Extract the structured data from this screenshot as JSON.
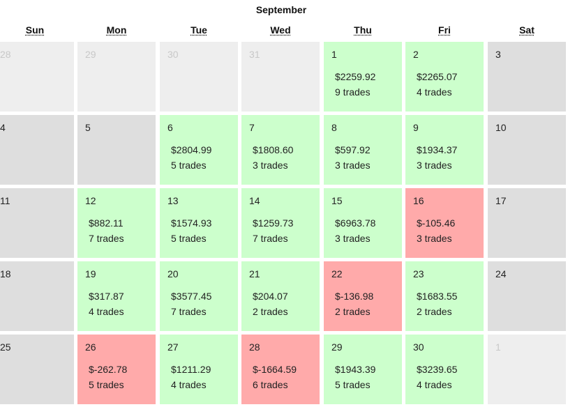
{
  "calendar": {
    "month": "September",
    "weekdays": [
      "Sun",
      "Mon",
      "Tue",
      "Wed",
      "Thu",
      "Fri",
      "Sat"
    ],
    "colors": {
      "profit": "#ccffcc",
      "loss": "#ffaaaa",
      "no_trades": "#dedede",
      "outside_month": "#eeeeee"
    },
    "weeks": [
      [
        {
          "day": "28",
          "status": "outside"
        },
        {
          "day": "29",
          "status": "outside"
        },
        {
          "day": "30",
          "status": "outside"
        },
        {
          "day": "31",
          "status": "outside"
        },
        {
          "day": "1",
          "status": "profit",
          "pnl": "$2259.92",
          "trades": "9 trades"
        },
        {
          "day": "2",
          "status": "profit",
          "pnl": "$2265.07",
          "trades": "4 trades"
        },
        {
          "day": "3",
          "status": "empty"
        }
      ],
      [
        {
          "day": "4",
          "status": "empty"
        },
        {
          "day": "5",
          "status": "empty"
        },
        {
          "day": "6",
          "status": "profit",
          "pnl": "$2804.99",
          "trades": "5 trades"
        },
        {
          "day": "7",
          "status": "profit",
          "pnl": "$1808.60",
          "trades": "3 trades"
        },
        {
          "day": "8",
          "status": "profit",
          "pnl": "$597.92",
          "trades": "3 trades"
        },
        {
          "day": "9",
          "status": "profit",
          "pnl": "$1934.37",
          "trades": "3 trades"
        },
        {
          "day": "10",
          "status": "empty"
        }
      ],
      [
        {
          "day": "11",
          "status": "empty"
        },
        {
          "day": "12",
          "status": "profit",
          "pnl": "$882.11",
          "trades": "7 trades"
        },
        {
          "day": "13",
          "status": "profit",
          "pnl": "$1574.93",
          "trades": "5 trades"
        },
        {
          "day": "14",
          "status": "profit",
          "pnl": "$1259.73",
          "trades": "7 trades"
        },
        {
          "day": "15",
          "status": "profit",
          "pnl": "$6963.78",
          "trades": "3 trades"
        },
        {
          "day": "16",
          "status": "loss",
          "pnl": "$-105.46",
          "trades": "3 trades"
        },
        {
          "day": "17",
          "status": "empty"
        }
      ],
      [
        {
          "day": "18",
          "status": "empty"
        },
        {
          "day": "19",
          "status": "profit",
          "pnl": "$317.87",
          "trades": "4 trades"
        },
        {
          "day": "20",
          "status": "profit",
          "pnl": "$3577.45",
          "trades": "7 trades"
        },
        {
          "day": "21",
          "status": "profit",
          "pnl": "$204.07",
          "trades": "2 trades"
        },
        {
          "day": "22",
          "status": "loss",
          "pnl": "$-136.98",
          "trades": "2 trades"
        },
        {
          "day": "23",
          "status": "profit",
          "pnl": "$1683.55",
          "trades": "2 trades"
        },
        {
          "day": "24",
          "status": "empty"
        }
      ],
      [
        {
          "day": "25",
          "status": "empty"
        },
        {
          "day": "26",
          "status": "loss",
          "pnl": "$-262.78",
          "trades": "5 trades"
        },
        {
          "day": "27",
          "status": "profit",
          "pnl": "$1211.29",
          "trades": "4 trades"
        },
        {
          "day": "28",
          "status": "loss",
          "pnl": "$-1664.59",
          "trades": "6 trades"
        },
        {
          "day": "29",
          "status": "profit",
          "pnl": "$1943.39",
          "trades": "5 trades"
        },
        {
          "day": "30",
          "status": "profit",
          "pnl": "$3239.65",
          "trades": "4 trades"
        },
        {
          "day": "1",
          "status": "outside"
        }
      ]
    ]
  }
}
